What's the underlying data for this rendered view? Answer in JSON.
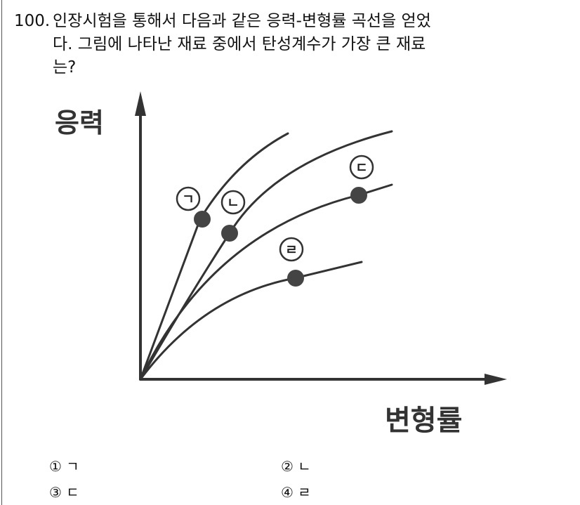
{
  "question": {
    "number": "100.",
    "lines": [
      "인장시험을 통해서 다음과 같은 응력-변형률 곡선을 얻었",
      "다. 그림에 나타난 재료 중에서 탄성계수가 가장 큰 재료",
      "는?"
    ]
  },
  "figure": {
    "y_axis_label": "응력",
    "x_axis_label": "변형률",
    "curve_labels": [
      "ㄱ",
      "ㄴ",
      "ㄷ",
      "ㄹ"
    ]
  },
  "choices": [
    {
      "num": "①",
      "text": "ㄱ"
    },
    {
      "num": "②",
      "text": "ㄴ"
    },
    {
      "num": "③",
      "text": "ㄷ"
    },
    {
      "num": "④",
      "text": "ㄹ"
    }
  ]
}
